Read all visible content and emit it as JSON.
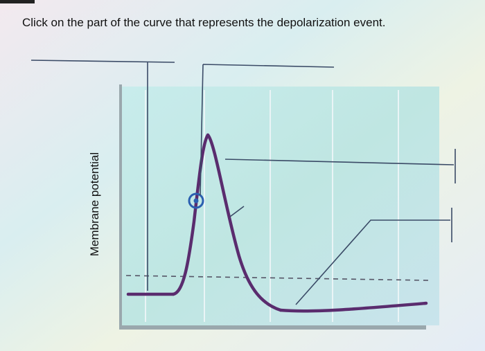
{
  "question": "Click on the part of the curve that represents the depolarization event.",
  "diagram": {
    "y_axis_label": "Membrane potential"
  }
}
